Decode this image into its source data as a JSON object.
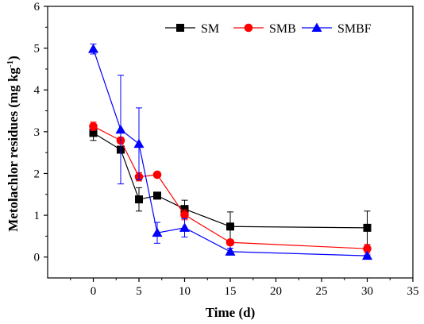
{
  "chart_data": {
    "type": "line",
    "xlabel": "Time (d)",
    "ylabel": {
      "main": "Metolachlor residues (mg kg",
      "sup": "-1",
      "close": ")"
    },
    "xlim": [
      -5,
      35
    ],
    "ylim": [
      -0.5,
      6
    ],
    "xticks": [
      0,
      5,
      10,
      15,
      20,
      25,
      30,
      35
    ],
    "yticks": [
      0,
      1,
      2,
      3,
      4,
      5,
      6
    ],
    "legend_position": "top-right",
    "grid": false,
    "x": [
      0,
      3,
      5,
      7,
      10,
      15,
      30
    ],
    "series": [
      {
        "name": "SM",
        "color": "#000000",
        "marker": "square",
        "values": [
          2.97,
          2.57,
          1.38,
          1.47,
          1.15,
          0.73,
          0.7
        ],
        "errors": [
          0.18,
          0.08,
          0.28,
          0.04,
          0.21,
          0.35,
          0.4
        ]
      },
      {
        "name": "SMB",
        "color": "#ff0000",
        "marker": "circle",
        "values": [
          3.13,
          2.79,
          1.92,
          1.97,
          1.01,
          0.35,
          0.2
        ],
        "errors": [
          0.1,
          0.07,
          0.1,
          0.04,
          0.12,
          0.06,
          0.1
        ]
      },
      {
        "name": "SMBF",
        "color": "#0000ff",
        "marker": "triangle",
        "values": [
          4.98,
          3.05,
          2.71,
          0.58,
          0.7,
          0.13,
          0.03
        ],
        "errors": [
          0.12,
          1.3,
          0.86,
          0.25,
          0.22,
          0.08,
          0.02
        ]
      }
    ]
  }
}
